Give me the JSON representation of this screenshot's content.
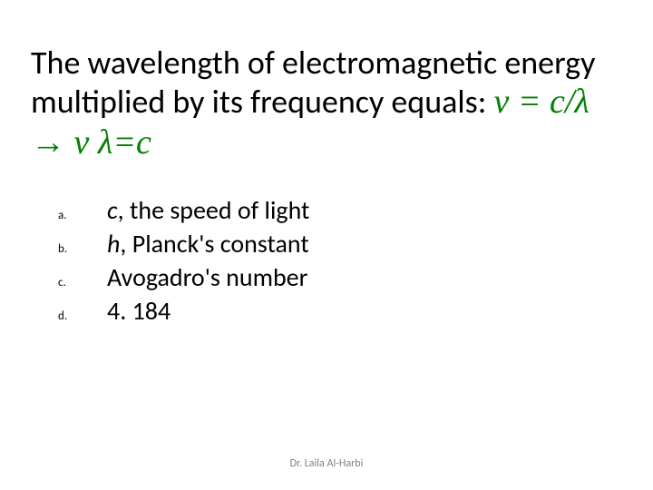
{
  "question": {
    "prefix": "The wavelength of electromagnetic energy multiplied by its frequency equals: ",
    "formula": "v = c/λ → v λ=c"
  },
  "options": [
    {
      "letter": "a.",
      "lead_italic": "c",
      "rest": ", the speed of light"
    },
    {
      "letter": "b.",
      "lead_italic": "h",
      "rest": ", Planck's constant"
    },
    {
      "letter": "c.",
      "lead_italic": "",
      "rest": "Avogadro's number"
    },
    {
      "letter": "d.",
      "lead_italic": "",
      "rest": "4. 184"
    }
  ],
  "footer": "Dr. Laila Al-Harbi",
  "colors": {
    "formula": "#008000",
    "text": "#000000",
    "footer": "#7f7f7f",
    "background": "#ffffff"
  },
  "fonts": {
    "body_family": "Calibri",
    "formula_family": "Times New Roman",
    "question_size_pt": 27,
    "option_size_pt": 21,
    "letter_size_pt": 10,
    "footer_size_pt": 9
  }
}
